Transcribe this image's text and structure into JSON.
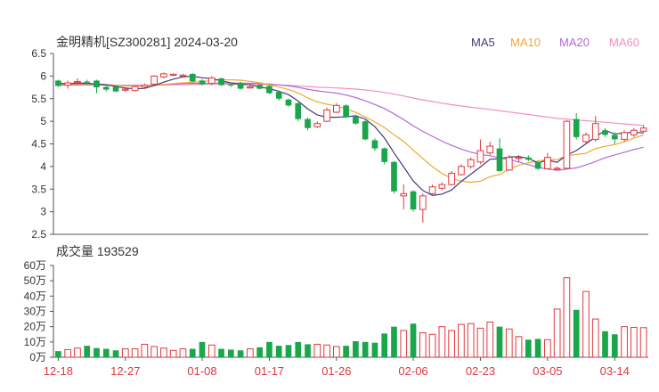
{
  "chart_data": [
    {
      "type": "candlestick",
      "title": "金明精机[SZ300281] 2024-03-20",
      "ylim": [
        2.5,
        6.5
      ],
      "yticks": [
        "6.5",
        "6",
        "5.5",
        "5",
        "4.5",
        "4",
        "3.5",
        "3",
        "2.5"
      ],
      "grid": false,
      "legend_position": "top-right",
      "legend": [
        {
          "name": "MA5",
          "color": "#3d3d7a"
        },
        {
          "name": "MA10",
          "color": "#f0a830"
        },
        {
          "name": "MA20",
          "color": "#b06ad8"
        },
        {
          "name": "MA60",
          "color": "#f28fc4"
        }
      ],
      "up_color": "#e0393e",
      "down_color": "#1aa64a",
      "candles": [
        [
          5.9,
          5.78,
          5.92,
          5.76
        ],
        [
          5.8,
          5.85,
          5.9,
          5.72
        ],
        [
          5.86,
          5.88,
          5.95,
          5.8
        ],
        [
          5.88,
          5.86,
          5.92,
          5.82
        ],
        [
          5.9,
          5.75,
          5.92,
          5.62
        ],
        [
          5.76,
          5.7,
          5.8,
          5.66
        ],
        [
          5.76,
          5.66,
          5.78,
          5.64
        ],
        [
          5.7,
          5.71,
          5.76,
          5.65
        ],
        [
          5.68,
          5.77,
          5.8,
          5.66
        ],
        [
          5.76,
          5.8,
          5.84,
          5.72
        ],
        [
          5.82,
          6.0,
          6.02,
          5.8
        ],
        [
          5.98,
          6.05,
          6.08,
          5.95
        ],
        [
          6.03,
          6.04,
          6.06,
          6.0
        ],
        [
          6.0,
          6.02,
          6.05,
          5.98
        ],
        [
          6.05,
          5.88,
          6.06,
          5.86
        ],
        [
          5.9,
          5.82,
          5.93,
          5.8
        ],
        [
          5.84,
          5.96,
          6.0,
          5.8
        ],
        [
          5.95,
          5.8,
          5.96,
          5.78
        ],
        [
          5.82,
          5.79,
          5.86,
          5.76
        ],
        [
          5.85,
          5.72,
          5.88,
          5.7
        ],
        [
          5.75,
          5.76,
          5.8,
          5.72
        ],
        [
          5.8,
          5.72,
          5.82,
          5.7
        ],
        [
          5.78,
          5.62,
          5.8,
          5.6
        ],
        [
          5.65,
          5.5,
          5.66,
          5.46
        ],
        [
          5.48,
          5.35,
          5.5,
          5.32
        ],
        [
          5.4,
          5.05,
          5.42,
          5.0
        ],
        [
          5.05,
          4.85,
          5.08,
          4.8
        ],
        [
          4.88,
          4.95,
          5.0,
          4.85
        ],
        [
          5.0,
          5.25,
          5.3,
          4.98
        ],
        [
          5.2,
          5.35,
          5.4,
          5.18
        ],
        [
          5.35,
          5.1,
          5.38,
          5.08
        ],
        [
          5.1,
          4.95,
          5.15,
          4.92
        ],
        [
          5.0,
          4.6,
          5.02,
          4.58
        ],
        [
          4.58,
          4.4,
          4.62,
          4.35
        ],
        [
          4.4,
          4.1,
          4.42,
          4.05
        ],
        [
          4.1,
          3.45,
          4.12,
          3.4
        ],
        [
          3.35,
          3.4,
          3.6,
          3.05
        ],
        [
          3.45,
          3.05,
          3.48,
          3.0
        ],
        [
          3.05,
          3.35,
          3.4,
          2.76
        ],
        [
          3.4,
          3.55,
          3.6,
          3.38
        ],
        [
          3.52,
          3.6,
          3.65,
          3.48
        ],
        [
          3.6,
          3.85,
          3.9,
          3.58
        ],
        [
          3.82,
          4.0,
          4.05,
          3.8
        ],
        [
          4.0,
          4.15,
          4.2,
          3.95
        ],
        [
          4.1,
          4.35,
          4.6,
          4.05
        ],
        [
          4.3,
          4.45,
          4.55,
          4.25
        ],
        [
          4.4,
          3.9,
          4.62,
          3.88
        ],
        [
          3.92,
          4.2,
          4.25,
          3.9
        ],
        [
          4.18,
          4.2,
          4.25,
          4.1
        ],
        [
          4.2,
          4.15,
          4.25,
          4.12
        ],
        [
          4.1,
          3.95,
          4.12,
          3.92
        ],
        [
          3.95,
          4.2,
          4.3,
          3.94
        ],
        [
          3.95,
          3.96,
          4.0,
          3.93
        ],
        [
          3.96,
          5.0,
          5.02,
          3.94
        ],
        [
          5.05,
          4.65,
          5.18,
          4.6
        ],
        [
          4.55,
          4.7,
          4.75,
          4.5
        ],
        [
          4.6,
          4.95,
          5.12,
          4.55
        ],
        [
          4.8,
          4.7,
          4.85,
          4.65
        ],
        [
          4.7,
          4.6,
          4.75,
          4.5
        ],
        [
          4.6,
          4.75,
          4.8,
          4.55
        ],
        [
          4.7,
          4.8,
          4.85,
          4.65
        ],
        [
          4.78,
          4.85,
          4.92,
          4.74
        ]
      ]
    },
    {
      "type": "bar",
      "title": "成交量 193529",
      "ylim": [
        0,
        600000
      ],
      "yticks": [
        "60万",
        "50万",
        "40万",
        "30万",
        "20万",
        "10万",
        "0万"
      ],
      "grid": false,
      "xticks": [
        {
          "label": "12-18",
          "index": 0
        },
        {
          "label": "12-27",
          "index": 7
        },
        {
          "label": "01-08",
          "index": 15
        },
        {
          "label": "01-17",
          "index": 22
        },
        {
          "label": "01-26",
          "index": 29
        },
        {
          "label": "02-06",
          "index": 37
        },
        {
          "label": "02-23",
          "index": 44
        },
        {
          "label": "03-05",
          "index": 51
        },
        {
          "label": "03-14",
          "index": 58
        }
      ],
      "volumes": [
        40000,
        50000,
        60000,
        75000,
        60000,
        55000,
        45000,
        55000,
        55000,
        85000,
        70000,
        60000,
        45000,
        55000,
        55000,
        100000,
        80000,
        55000,
        50000,
        45000,
        55000,
        65000,
        100000,
        75000,
        80000,
        100000,
        85000,
        85000,
        80000,
        70000,
        75000,
        105000,
        100000,
        95000,
        155000,
        200000,
        175000,
        220000,
        160000,
        150000,
        200000,
        175000,
        215000,
        220000,
        190000,
        230000,
        200000,
        185000,
        135000,
        115000,
        120000,
        115000,
        315000,
        520000,
        310000,
        430000,
        250000,
        170000,
        150000,
        200000,
        195000,
        193529
      ]
    }
  ]
}
